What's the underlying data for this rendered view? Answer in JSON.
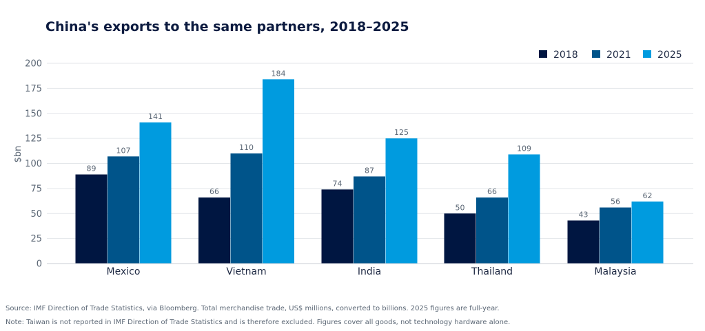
{
  "chart_data": {
    "type": "bar",
    "title": "China's exports to the same partners, 2018–2025",
    "xlabel": "",
    "ylabel": "$bn",
    "ylim": [
      0,
      200
    ],
    "yticks": [
      0,
      25,
      50,
      75,
      100,
      125,
      150,
      175,
      200
    ],
    "grid": true,
    "legend_position": "top-right",
    "categories": [
      "Mexico",
      "Vietnam",
      "India",
      "Thailand",
      "Malaysia"
    ],
    "series": [
      {
        "name": "2018",
        "color": "#001641",
        "values": [
          89,
          66,
          74,
          50,
          43
        ]
      },
      {
        "name": "2021",
        "color": "#00548a",
        "values": [
          107,
          110,
          87,
          66,
          56
        ]
      },
      {
        "name": "2025",
        "color": "#009bdf",
        "values": [
          141,
          184,
          125,
          109,
          62
        ]
      }
    ]
  },
  "footnotes": {
    "source": "Source: IMF Direction of Trade Statistics, via Bloomberg. Total merchandise trade, US$ millions, converted to billions. 2025 figures are full-year.",
    "note": "Note: Taiwan is not reported in IMF Direction of Trade Statistics and is therefore excluded. Figures cover all goods, not technology hardware alone."
  }
}
